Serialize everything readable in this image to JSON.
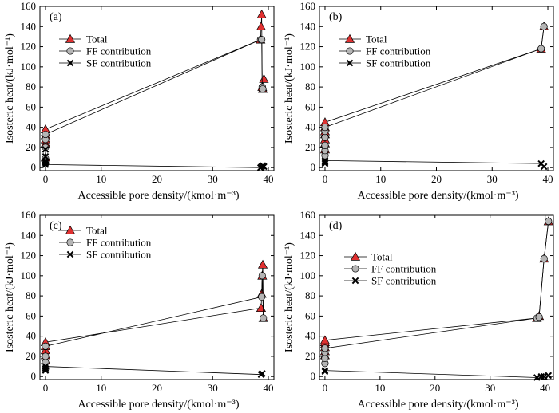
{
  "chart_data": [
    {
      "type": "line",
      "panel_label": "(a)",
      "xlabel": "Accessible pore density/(kmol·m⁻³)",
      "ylabel": "Isosteric heat/(kJ·mol⁻¹)",
      "xlim": [
        -1,
        41
      ],
      "ylim": [
        -3,
        160
      ],
      "xticks": [
        0,
        10,
        20,
        30,
        40
      ],
      "yticks": [
        0,
        20,
        40,
        60,
        80,
        100,
        120,
        140,
        160
      ],
      "legend_position": "top-left",
      "series": [
        {
          "name": "Total",
          "marker": "triangle",
          "color": "#e03030",
          "x": [
            0,
            0,
            0,
            0,
            0,
            0,
            38.6,
            38.7,
            38.8,
            38.9,
            39.0,
            39.2
          ],
          "y": [
            10,
            24,
            28,
            32,
            35,
            38,
            127,
            140,
            152,
            80,
            78,
            88
          ]
        },
        {
          "name": "FF contribution",
          "marker": "circle",
          "color": "#b5b5b5",
          "x": [
            0,
            0,
            0,
            0,
            0,
            38.6,
            38.8,
            38.9,
            39.0
          ],
          "y": [
            4,
            9,
            20,
            28,
            33,
            127,
            127,
            80,
            78
          ]
        },
        {
          "name": "SF contribution",
          "marker": "x",
          "color": "#000000",
          "x": [
            0,
            0,
            0,
            0,
            0,
            38.6,
            38.8,
            39.0,
            39.2
          ],
          "y": [
            5,
            6,
            11,
            18,
            3,
            0,
            1,
            2,
            1
          ]
        }
      ]
    },
    {
      "type": "line",
      "panel_label": "(b)",
      "xlabel": "Accessible pore density/(kmol·m⁻³)",
      "ylabel": "Isosteric heat/(kJ·mol⁻¹)",
      "xlim": [
        -1,
        41
      ],
      "ylim": [
        -3,
        160
      ],
      "xticks": [
        0,
        10,
        20,
        30,
        40
      ],
      "yticks": [
        0,
        20,
        40,
        60,
        80,
        100,
        120,
        140,
        160
      ],
      "legend_position": "top-left",
      "series": [
        {
          "name": "Total",
          "marker": "triangle",
          "color": "#e03030",
          "x": [
            0,
            0,
            0,
            0,
            0,
            0,
            0,
            38.8,
            39.3
          ],
          "y": [
            18,
            24,
            28,
            33,
            36,
            40,
            45,
            118,
            140
          ]
        },
        {
          "name": "FF contribution",
          "marker": "circle",
          "color": "#b5b5b5",
          "x": [
            0,
            0,
            0,
            0,
            0,
            0,
            38.8,
            39.3
          ],
          "y": [
            12,
            17,
            22,
            30,
            36,
            40,
            118,
            140
          ]
        },
        {
          "name": "SF contribution",
          "marker": "x",
          "color": "#000000",
          "x": [
            0,
            0,
            0,
            0,
            38.8,
            39.3
          ],
          "y": [
            4,
            5,
            6,
            7,
            4,
            1
          ]
        }
      ]
    },
    {
      "type": "line",
      "panel_label": "(c)",
      "xlabel": "Accessible pore density/(kmol·m⁻³)",
      "ylabel": "Isosteric heat/(kJ·mol⁻¹)",
      "xlim": [
        -1,
        41
      ],
      "ylim": [
        -3,
        160
      ],
      "xticks": [
        0,
        10,
        20,
        30,
        40
      ],
      "yticks": [
        0,
        20,
        40,
        60,
        80,
        100,
        120,
        140,
        160
      ],
      "legend_position": "top-left",
      "series": [
        {
          "name": "Total",
          "marker": "triangle",
          "color": "#e03030",
          "x": [
            0,
            0,
            0,
            0,
            0,
            38.7,
            38.8,
            38.9,
            39.0,
            39.1
          ],
          "y": [
            16,
            21,
            26,
            30,
            34,
            68,
            82,
            100,
            111,
            58
          ]
        },
        {
          "name": "FF contribution",
          "marker": "circle",
          "color": "#b5b5b5",
          "x": [
            0,
            0,
            0,
            0,
            38.8,
            38.9,
            39.1
          ],
          "y": [
            8,
            14,
            20,
            30,
            79,
            100,
            58
          ]
        },
        {
          "name": "SF contribution",
          "marker": "x",
          "color": "#000000",
          "x": [
            0,
            0,
            0,
            38.7,
            38.9
          ],
          "y": [
            6,
            8,
            10,
            2,
            3
          ]
        }
      ]
    },
    {
      "type": "line",
      "panel_label": "(d)",
      "xlabel": "Accessible pore density/(kmol·m⁻³)",
      "ylabel": "Isosteric heat/(kJ·mol⁻¹)",
      "xlim": [
        -1,
        41.5
      ],
      "ylim": [
        -3,
        160
      ],
      "xticks": [
        0,
        10,
        20,
        30,
        40
      ],
      "yticks": [
        0,
        20,
        40,
        60,
        80,
        100,
        120,
        140,
        160
      ],
      "legend_position": "top-left",
      "series": [
        {
          "name": "Total",
          "marker": "triangle",
          "color": "#e03030",
          "x": [
            0,
            0,
            0,
            0,
            0,
            0,
            38.5,
            38.9,
            39.8,
            40.6
          ],
          "y": [
            21,
            25,
            29,
            32,
            34,
            36,
            58,
            60,
            117,
            154
          ]
        },
        {
          "name": "FF contribution",
          "marker": "circle",
          "color": "#b5b5b5",
          "x": [
            0,
            0,
            0,
            0,
            38.5,
            38.9,
            39.8,
            40.6
          ],
          "y": [
            13,
            18,
            24,
            28,
            58,
            59,
            117,
            154
          ]
        },
        {
          "name": "SF contribution",
          "marker": "x",
          "color": "#000000",
          "x": [
            0,
            0,
            38.5,
            39.3,
            39.8,
            40.6
          ],
          "y": [
            5,
            6,
            -1,
            0,
            0,
            1
          ]
        }
      ]
    }
  ]
}
